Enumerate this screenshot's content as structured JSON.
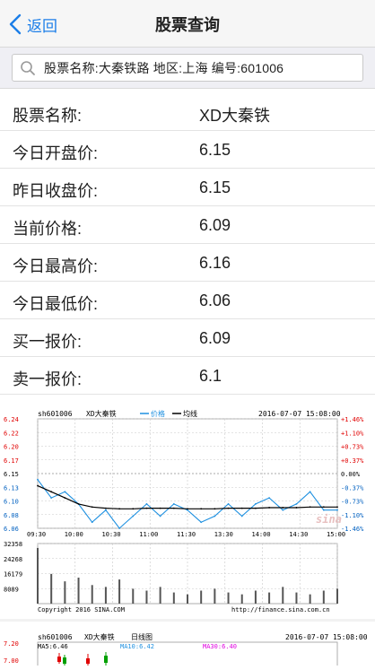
{
  "nav": {
    "back_label": "返回",
    "title": "股票查询"
  },
  "search": {
    "text": "股票名称:大秦铁路    地区:上海    编号:601006"
  },
  "rows": [
    {
      "label": "股票名称:",
      "value": "XD大秦铁"
    },
    {
      "label": "今日开盘价:",
      "value": "6.15"
    },
    {
      "label": "昨日收盘价:",
      "value": "6.15"
    },
    {
      "label": "当前价格:",
      "value": "6.09"
    },
    {
      "label": "今日最高价:",
      "value": "6.16"
    },
    {
      "label": "今日最低价:",
      "value": "6.06"
    },
    {
      "label": "买一报价:",
      "value": "6.09"
    },
    {
      "label": "卖一报价:",
      "value": "6.1"
    }
  ],
  "intraday": {
    "code": "sh601006",
    "name": "XD大秦铁",
    "legend_price": "价格",
    "legend_avg": "均线",
    "datetime": "2016-07-07 15:08:00",
    "price_ticks": [
      "6.24",
      "6.22",
      "6.20",
      "6.17",
      "6.15",
      "6.13",
      "6.10",
      "6.08",
      "6.06"
    ],
    "pct_ticks": [
      "+1.46%",
      "+1.10%",
      "+0.73%",
      "+0.37%",
      "0.00%",
      "-0.37%",
      "-0.73%",
      "-1.10%",
      "-1.46%"
    ],
    "time_ticks": [
      "09:30",
      "10:00",
      "10:30",
      "11:00",
      "11:30",
      "13:30",
      "14:00",
      "14:30",
      "15:00"
    ],
    "volume_ticks": [
      "32358",
      "24268",
      "16179",
      "8089"
    ],
    "watermark": "sina",
    "copyright": "Copyright 2016 SINA.COM",
    "source_url": "http://finance.sina.com.cn",
    "colors": {
      "price_line": "#1e90e0",
      "avg_line": "#000000",
      "up": "#e00000",
      "down": "#0060c0",
      "grid": "#c8c8c8"
    }
  },
  "kline": {
    "code": "sh601006",
    "name": "XD大秦铁",
    "title": "日线图",
    "datetime": "2016-07-07 15:08:00",
    "ma5": "MA5:6.46",
    "ma10": "MA10:6.42",
    "ma30": "MA30:6.40",
    "y_ticks": [
      "7.20",
      "7.00"
    ],
    "colors": {
      "ma5": "#000000",
      "ma10": "#1e90e0",
      "ma30": "#e000e0"
    }
  },
  "chart_data": [
    {
      "type": "line",
      "title": "",
      "x": [
        "09:30",
        "09:40",
        "09:50",
        "10:00",
        "10:10",
        "10:20",
        "10:30",
        "10:40",
        "10:50",
        "11:00",
        "11:10",
        "11:20",
        "11:30",
        "13:30",
        "13:40",
        "13:50",
        "14:00",
        "14:10",
        "14:20",
        "14:30",
        "14:40",
        "14:50",
        "15:00"
      ],
      "series": [
        {
          "name": "价格",
          "values": [
            6.14,
            6.11,
            6.12,
            6.1,
            6.07,
            6.09,
            6.06,
            6.08,
            6.1,
            6.08,
            6.1,
            6.09,
            6.07,
            6.08,
            6.1,
            6.08,
            6.1,
            6.11,
            6.09,
            6.1,
            6.12,
            6.09,
            6.09
          ]
        },
        {
          "name": "均线",
          "values": [
            6.13,
            6.12,
            6.11,
            6.1,
            6.095,
            6.093,
            6.092,
            6.092,
            6.093,
            6.093,
            6.093,
            6.092,
            6.092,
            6.092,
            6.093,
            6.093,
            6.093,
            6.094,
            6.094,
            6.094,
            6.095,
            6.095,
            6.095
          ]
        }
      ],
      "volume": [
        30000,
        16000,
        12000,
        14000,
        10000,
        9000,
        13000,
        8000,
        7000,
        9000,
        6000,
        5000,
        7000,
        8000,
        6000,
        5000,
        7000,
        6000,
        9000,
        6000,
        5000,
        7000,
        8000
      ],
      "ylim": [
        6.06,
        6.24
      ],
      "grid": true,
      "legend": "top"
    }
  ]
}
